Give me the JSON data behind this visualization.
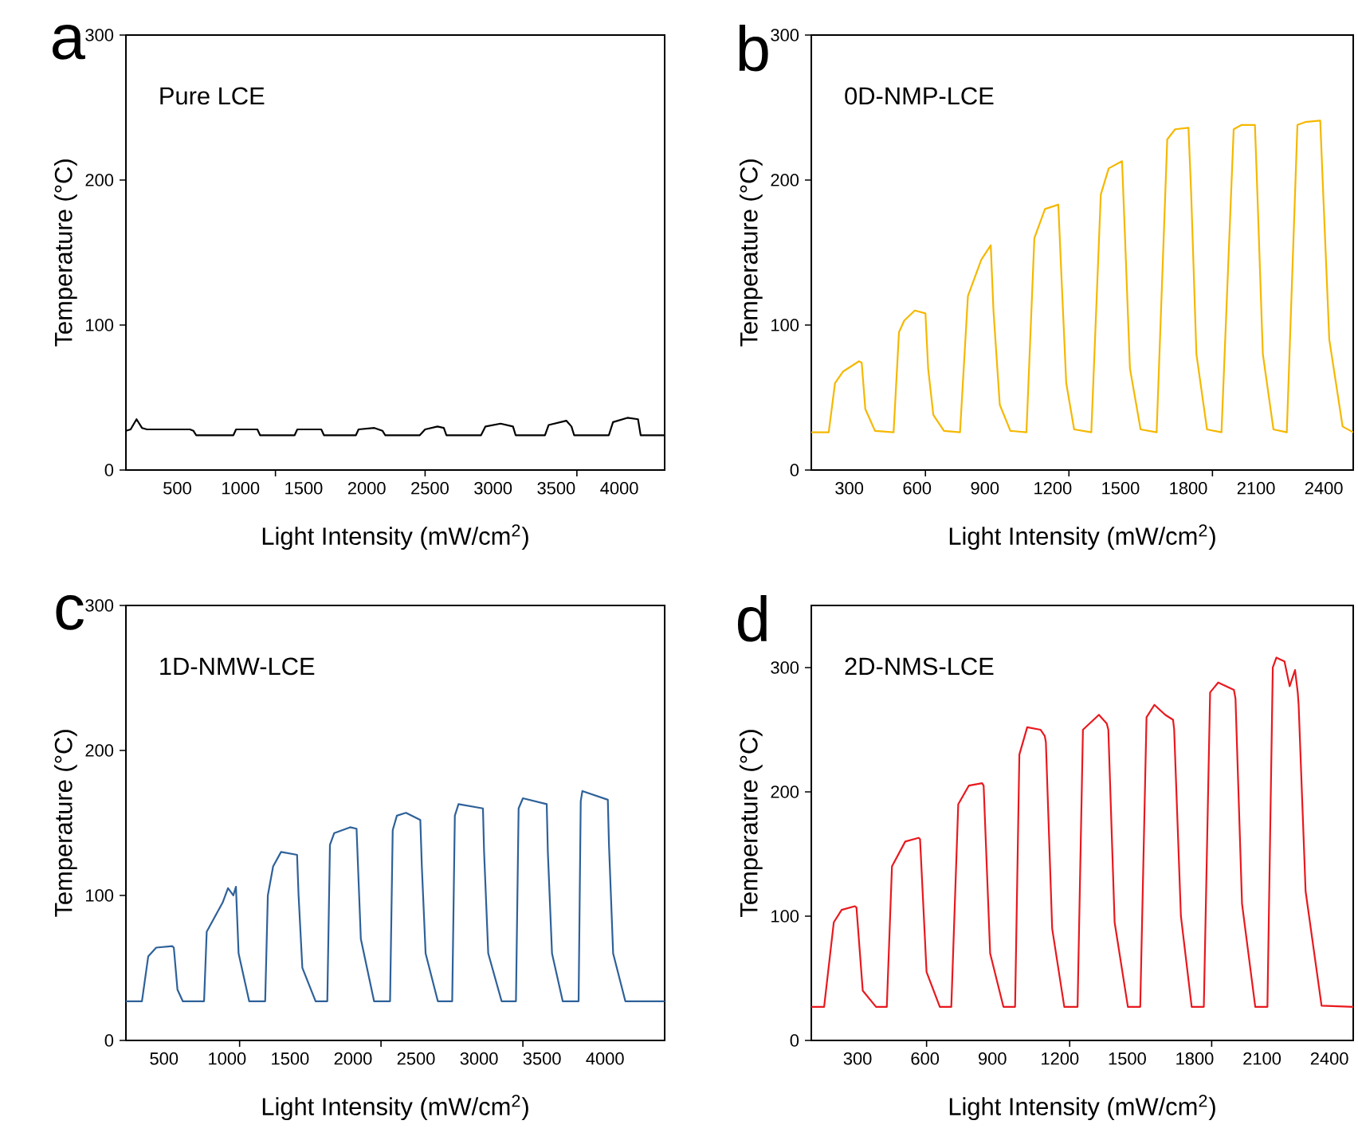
{
  "chart_data": [
    {
      "type": "line",
      "title": "a",
      "annotations": [
        "Pure LCE"
      ],
      "xlabel": "Light Intensity (mW/cm$^{2}$)",
      "ylabel": "Temperature (°C)",
      "xlim": [
        93,
        4359
      ],
      "ylim": [
        0,
        300
      ],
      "yticks": [
        0,
        100,
        200,
        300
      ],
      "xticks": [
        500,
        1000,
        1500,
        2000,
        2500,
        3000,
        3500,
        4000,
        {
          "value": 1277,
          "label": null
        },
        {
          "value": 2462,
          "label": null
        },
        {
          "value": 3664,
          "label": null
        }
      ],
      "marker": "none",
      "line_style": "solid",
      "grid": false,
      "series": [
        {
          "color": "#000000",
          "x": [
            93,
            130,
            177,
            220,
            260,
            600,
            628,
            649,
            944,
            965,
            1134,
            1155,
            1429,
            1450,
            1640,
            1661,
            1914,
            1935,
            2060,
            2125,
            2146,
            2420,
            2462,
            2560,
            2610,
            2631,
            2905,
            2940,
            3060,
            3158,
            3179,
            3411,
            3440,
            3580,
            3621,
            3642,
            3917,
            3950,
            4064,
            4148,
            4169,
            4359
          ],
          "values": [
            27,
            28,
            35,
            29,
            28,
            28,
            27,
            24,
            24,
            28,
            28,
            24,
            24,
            28,
            28,
            24,
            24,
            28,
            29,
            27,
            24,
            24,
            28,
            30,
            29,
            24,
            24,
            30,
            32,
            30,
            24,
            24,
            31,
            34,
            30,
            24,
            24,
            33,
            36,
            35,
            24,
            24
          ]
        }
      ]
    },
    {
      "type": "line",
      "title": "b",
      "annotations": [
        "0D-NMP-LCE"
      ],
      "xlabel": "Light Intensity (mW/cm$^{2}$)",
      "ylabel": "Temperature (°C)",
      "xlim": [
        132,
        2530
      ],
      "ylim": [
        0,
        300
      ],
      "yticks": [
        0,
        100,
        200,
        300
      ],
      "xticks": [
        300,
        600,
        900,
        1200,
        1500,
        1800,
        2100,
        2400,
        {
          "value": 637,
          "label": null
        },
        {
          "value": 1272,
          "label": null
        },
        {
          "value": 1907,
          "label": null
        }
      ],
      "marker": "none",
      "line_style": "solid",
      "grid": false,
      "series": [
        {
          "color": "#f5b800",
          "x": [
            132,
            209,
            237,
            273,
            343,
            355,
            371,
            414,
            496,
            520,
            543,
            590,
            637,
            649,
            672,
            719,
            790,
            825,
            884,
            926,
            938,
            966,
            1013,
            1084,
            1119,
            1166,
            1225,
            1237,
            1260,
            1295,
            1371,
            1413,
            1448,
            1507,
            1519,
            1542,
            1589,
            1660,
            1707,
            1742,
            1801,
            1813,
            1836,
            1883,
            1947,
            2001,
            2036,
            2095,
            2106,
            2130,
            2177,
            2236,
            2283,
            2318,
            2384,
            2396,
            2424,
            2483,
            2530
          ],
          "values": [
            26,
            26,
            60,
            68,
            75,
            74,
            42,
            27,
            26,
            95,
            103,
            110,
            108,
            70,
            38,
            27,
            26,
            120,
            145,
            155,
            110,
            45,
            27,
            26,
            160,
            180,
            183,
            140,
            60,
            28,
            26,
            190,
            208,
            213,
            165,
            70,
            28,
            26,
            228,
            235,
            236,
            190,
            80,
            28,
            26,
            235,
            238,
            238,
            190,
            80,
            28,
            26,
            238,
            240,
            241,
            195,
            90,
            30,
            26
          ]
        }
      ]
    },
    {
      "type": "line",
      "title": "c",
      "annotations": [
        "1D-NMW-LCE"
      ],
      "xlabel": "Light Intensity (mW/cm$^{2}$)",
      "ylabel": "Temperature (°C)",
      "xlim": [
        198,
        4473
      ],
      "ylim": [
        0,
        300
      ],
      "yticks": [
        0,
        100,
        200,
        300
      ],
      "xticks": [
        500,
        1000,
        1500,
        2000,
        2500,
        3000,
        3500,
        4000,
        {
          "value": 1100,
          "label": null
        },
        {
          "value": 2222,
          "label": null
        },
        {
          "value": 3348,
          "label": null
        }
      ],
      "marker": "none",
      "line_style": "solid",
      "grid": false,
      "series": [
        {
          "color": "#2e6199",
          "x": [
            198,
            325,
            375,
            438,
            565,
            578,
            607,
            649,
            818,
            839,
            965,
            1008,
            1050,
            1071,
            1092,
            1176,
            1303,
            1324,
            1366,
            1429,
            1556,
            1568,
            1598,
            1703,
            1796,
            1817,
            1851,
            1977,
            2028,
            2062,
            2167,
            2294,
            2315,
            2348,
            2420,
            2534,
            2546,
            2576,
            2673,
            2787,
            2808,
            2837,
            3031,
            3040,
            3073,
            3179,
            3293,
            3314,
            3348,
            3537,
            3546,
            3579,
            3664,
            3790,
            3807,
            3820,
            4022,
            4031,
            4064,
            4161,
            4473
          ],
          "values": [
            27,
            27,
            58,
            64,
            65,
            64,
            35,
            27,
            27,
            75,
            95,
            105,
            100,
            106,
            60,
            27,
            27,
            100,
            120,
            130,
            128,
            100,
            50,
            27,
            27,
            135,
            143,
            147,
            146,
            70,
            27,
            27,
            145,
            155,
            157,
            152,
            120,
            60,
            27,
            27,
            155,
            163,
            160,
            130,
            60,
            27,
            27,
            160,
            167,
            163,
            130,
            60,
            27,
            27,
            165,
            172,
            166,
            135,
            60,
            27,
            27
          ]
        }
      ]
    },
    {
      "type": "line",
      "title": "d",
      "annotations": [
        "2D-NMS-LCE"
      ],
      "xlabel": "Light Intensity (mW/cm$^{2}$)",
      "ylabel": "Temperature (°C)",
      "xlim": [
        94,
        2506
      ],
      "ylim": [
        0,
        350
      ],
      "yticks": [
        0,
        100,
        200,
        300
      ],
      "xticks": [
        300,
        600,
        900,
        1200,
        1500,
        1800,
        2100,
        2400,
        {
          "value": 607,
          "label": null
        },
        {
          "value": 1244,
          "label": null
        },
        {
          "value": 1876,
          "label": null
        }
      ],
      "marker": "none",
      "line_style": "solid",
      "grid": false,
      "series": [
        {
          "color": "#e8191e",
          "x": [
            94,
            151,
            194,
            229,
            288,
            295,
            323,
            382,
            430,
            453,
            512,
            571,
            578,
            607,
            666,
            717,
            748,
            795,
            854,
            861,
            890,
            949,
            1001,
            1020,
            1055,
            1114,
            1133,
            1138,
            1166,
            1220,
            1279,
            1303,
            1374,
            1409,
            1416,
            1444,
            1503,
            1558,
            1586,
            1621,
            1669,
            1704,
            1709,
            1739,
            1787,
            1841,
            1869,
            1905,
            1975,
            1982,
            2011,
            2070,
            2124,
            2148,
            2164,
            2200,
            2223,
            2247,
            2259,
            2263,
            2294,
            2365,
            2506
          ],
          "values": [
            27,
            27,
            95,
            105,
            108,
            107,
            40,
            27,
            27,
            140,
            160,
            163,
            162,
            55,
            27,
            27,
            190,
            205,
            207,
            205,
            70,
            27,
            27,
            230,
            252,
            250,
            245,
            240,
            90,
            27,
            27,
            250,
            262,
            255,
            250,
            95,
            27,
            27,
            260,
            270,
            262,
            258,
            250,
            100,
            27,
            27,
            280,
            288,
            282,
            275,
            110,
            27,
            27,
            300,
            308,
            305,
            285,
            298,
            280,
            270,
            120,
            28,
            27
          ]
        }
      ]
    }
  ]
}
